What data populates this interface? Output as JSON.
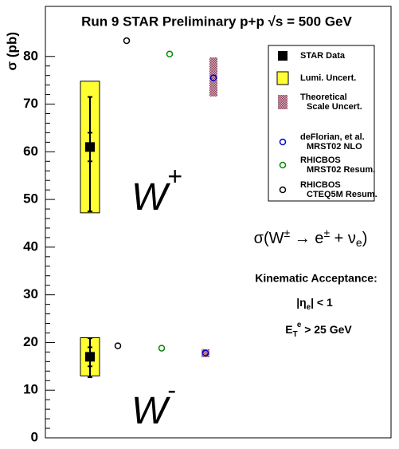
{
  "chart_data": {
    "type": "scatter",
    "title": "Run 9 STAR Preliminary  p+p √s = 500 GeV",
    "ylabel": "σ (pb)",
    "groups": [
      {
        "base": "W",
        "sup": "+"
      },
      {
        "base": "W",
        "sup": "-"
      }
    ],
    "ylim": [
      0,
      90.5
    ],
    "yticks": [
      0,
      10,
      20,
      30,
      40,
      50,
      60,
      70,
      80
    ],
    "series": [
      {
        "name": "STAR Data",
        "color": "#000000",
        "marker": "filled-square",
        "values": [
          61.0,
          17.0
        ],
        "stat": [
          3.0,
          2.0
        ],
        "syst_up": [
          10.5,
          3.9
        ],
        "syst_down": [
          13.5,
          4.3
        ]
      },
      {
        "name": "Lumi. Uncert.",
        "color": "#ffff33",
        "marker": "box",
        "values": [
          13.8,
          4.0
        ]
      },
      {
        "name": "Theoretical\nScale Uncert.",
        "color": "#a05a6e",
        "marker": "hatched-box",
        "low": [
          71.6,
          16.9
        ],
        "high": [
          79.8,
          18.6
        ]
      },
      {
        "name": "deFlorian, et al.\nMRST02 NLO",
        "color": "#0000cc",
        "marker": "open-circle",
        "values": [
          75.5,
          17.8
        ]
      },
      {
        "name": "RHICBOS\nMRST02 Resum.",
        "color": "#008800",
        "marker": "open-circle",
        "values": [
          80.5,
          18.8
        ]
      },
      {
        "name": "RHICBOS\nCTEQ5M Resum.",
        "color": "#000000",
        "marker": "open-circle",
        "values": [
          83.3,
          19.3
        ]
      }
    ],
    "annotations": {
      "formula": [
        {
          "t": "σ(W"
        },
        {
          "sup": "±"
        },
        {
          "t": " → e"
        },
        {
          "sup": "±"
        },
        {
          "t": " + ν"
        },
        {
          "sub": "e"
        },
        {
          "t": ")"
        }
      ],
      "acceptance_title": "Kinematic Acceptance:",
      "eta_cut": [
        {
          "t": "|η"
        },
        {
          "sub": "e"
        },
        {
          "t": "| < 1"
        }
      ],
      "et_cut": [
        {
          "t": "E"
        },
        {
          "sub": "T"
        },
        {
          "sup": "e"
        },
        {
          "t": " > 25 GeV"
        }
      ]
    }
  }
}
